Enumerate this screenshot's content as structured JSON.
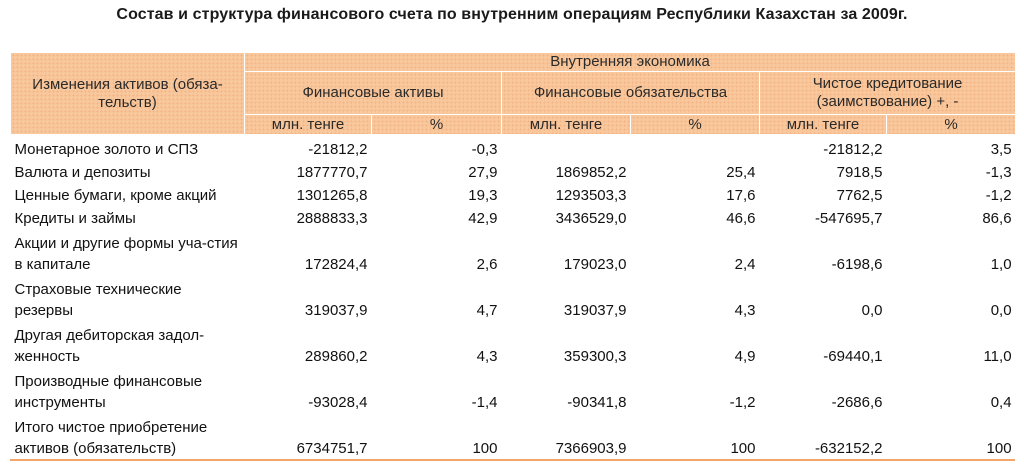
{
  "title": "Состав и структура финансового счета по внутренним операциям Республики Казахстан за 2009г.",
  "header": {
    "row_label": "Изменения активов (обяза-тельств)",
    "top": "Внутренняя экономика",
    "groups": [
      "Финансовые активы",
      "Финансовые обязательства",
      "Чистое кредитование (заимствование)  +,  -"
    ],
    "unit_mln": "млн. тенге",
    "unit_pct": "%"
  },
  "rows": [
    {
      "label": "Монетарное золото и СПЗ",
      "fa_mln": "-21812,2",
      "fa_pct": "-0,3",
      "fo_mln": "",
      "fo_pct": "",
      "net_mln": "-21812,2",
      "net_pct": "3,5"
    },
    {
      "label": "Валюта и депозиты",
      "fa_mln": "1877770,7",
      "fa_pct": "27,9",
      "fo_mln": "1869852,2",
      "fo_pct": "25,4",
      "net_mln": "7918,5",
      "net_pct": "-1,3"
    },
    {
      "label": "Ценные бумаги, кроме акций",
      "fa_mln": "1301265,8",
      "fa_pct": "19,3",
      "fo_mln": "1293503,3",
      "fo_pct": "17,6",
      "net_mln": "7762,5",
      "net_pct": "-1,2"
    },
    {
      "label": "Кредиты и займы",
      "fa_mln": "2888833,3",
      "fa_pct": "42,9",
      "fo_mln": "3436529,0",
      "fo_pct": "46,6",
      "net_mln": "-547695,7",
      "net_pct": "86,6"
    },
    {
      "label": "Акции и другие формы уча-стия в капитале",
      "fa_mln": "172824,4",
      "fa_pct": "2,6",
      "fo_mln": "179023,0",
      "fo_pct": "2,4",
      "net_mln": "-6198,6",
      "net_pct": "1,0"
    },
    {
      "label": "Страховые технические резервы",
      "fa_mln": "319037,9",
      "fa_pct": "4,7",
      "fo_mln": "319037,9",
      "fo_pct": "4,3",
      "net_mln": "0,0",
      "net_pct": "0,0"
    },
    {
      "label": "Другая дебиторская задол-женность",
      "fa_mln": "289860,2",
      "fa_pct": "4,3",
      "fo_mln": "359300,3",
      "fo_pct": "4,9",
      "net_mln": "-69440,1",
      "net_pct": "11,0"
    },
    {
      "label": "Производные финансовые инструменты",
      "fa_mln": "-93028,4",
      "fa_pct": "-1,4",
      "fo_mln": "-90341,8",
      "fo_pct": "-1,2",
      "net_mln": "-2686,6",
      "net_pct": "0,4"
    },
    {
      "label": "Итого чистое приобретение активов (обязательств)",
      "fa_mln": "6734751,7",
      "fa_pct": "100",
      "fo_mln": "7366903,9",
      "fo_pct": "100",
      "net_mln": "-632152,2",
      "net_pct": "100"
    }
  ]
}
